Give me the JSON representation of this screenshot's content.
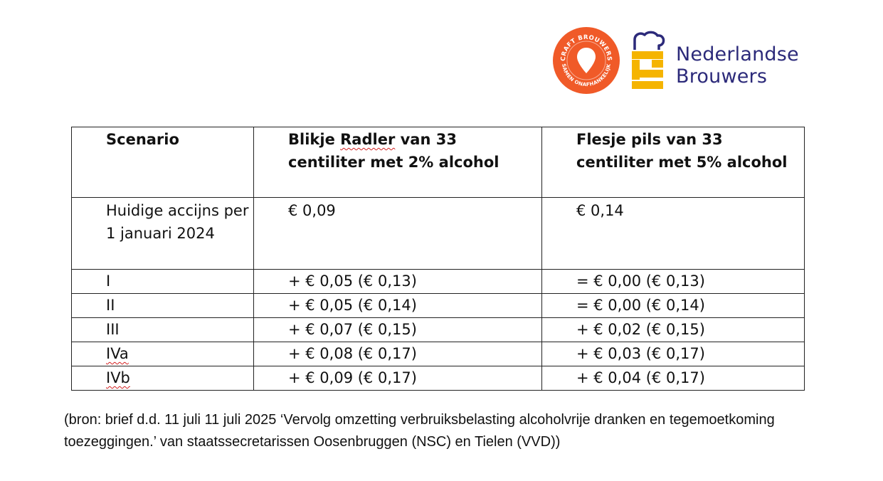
{
  "logos": {
    "craft_brouwers": {
      "ring_text_top": "CRAFT BROUWERS",
      "ring_text_bottom": "SAMEN ONAFHANKELIJK",
      "color": "#f05a28"
    },
    "nederlandse_brouwers": {
      "line1": "Nederlandse",
      "line2": "Brouwers",
      "text_color": "#2c2a7a",
      "accent_color": "#f5b400"
    }
  },
  "table": {
    "headers": {
      "scenario": "Scenario",
      "radler_part1": "Blikje ",
      "radler_part2": "Radler",
      "radler_part3": " van 33 centiliter met 2% alcohol",
      "pils": "Flesje pils van 33 centiliter met 5% alcohol"
    },
    "current": {
      "label": "Huidige accijns per 1 januari 2024",
      "radler": "€ 0,09",
      "pils": "€ 0,14"
    },
    "rows": [
      {
        "scenario": "I",
        "radler": "+ € 0,05 (€ 0,13)",
        "pils": "= € 0,00 (€ 0,13)"
      },
      {
        "scenario": "II",
        "radler": "+ € 0,05 (€ 0,14)",
        "pils": "= € 0,00 (€ 0,14)"
      },
      {
        "scenario": "III",
        "radler": "+ € 0,07 (€ 0,15)",
        "pils": "+ € 0,02 (€ 0,15)"
      },
      {
        "scenario": "IVa",
        "radler": "+ € 0,08 (€ 0,17)",
        "pils": "+ € 0,03 (€ 0,17)"
      },
      {
        "scenario": "IVb",
        "radler": "+ € 0,09 (€ 0,17)",
        "pils": "+ € 0,04 (€ 0,17)"
      }
    ]
  },
  "source_note": "(bron: brief d.d. 11 juli 11 juli 2025 ‘Vervolg omzetting verbruiksbelasting alcoholvrije dranken en tegemoetkoming toezeggingen.’  van staatssecretarissen Oosenbruggen (NSC) en Tielen (VVD))"
}
